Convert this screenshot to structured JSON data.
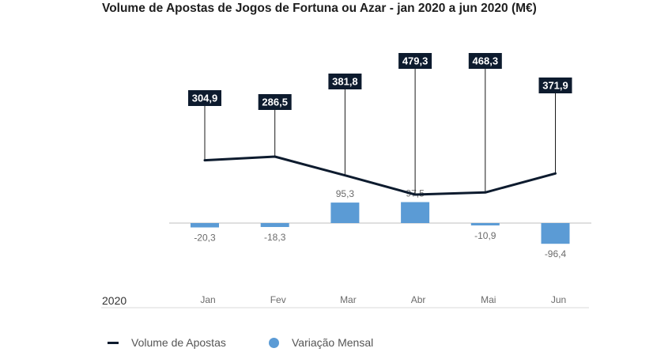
{
  "chart_data": {
    "type": "line+bar",
    "title": "Volume de Apostas de Jogos de Fortuna ou Azar - jan 2020 a jun 2020 (M€)",
    "year_label": "2020",
    "categories": [
      "Jan",
      "Fev",
      "Mar",
      "Abr",
      "Mai",
      "Jun"
    ],
    "series": [
      {
        "name": "Volume de Apostas",
        "type": "line",
        "values": [
          304.9,
          286.5,
          381.8,
          479.3,
          468.3,
          371.9
        ],
        "labels": [
          "304,9",
          "286,5",
          "381,8",
          "479,3",
          "468,3",
          "371,9"
        ]
      },
      {
        "name": "Variação Mensal",
        "type": "bar",
        "values": [
          -20.3,
          -18.3,
          95.3,
          97.5,
          -10.9,
          -96.4
        ],
        "labels": [
          "-20,3",
          "-18,3",
          "95,3",
          "97,5",
          "-10,9",
          "-96,4"
        ]
      }
    ],
    "colors": {
      "line": "#0d1b2e",
      "bar": "#5b9bd5"
    },
    "legend_position": "bottom"
  }
}
